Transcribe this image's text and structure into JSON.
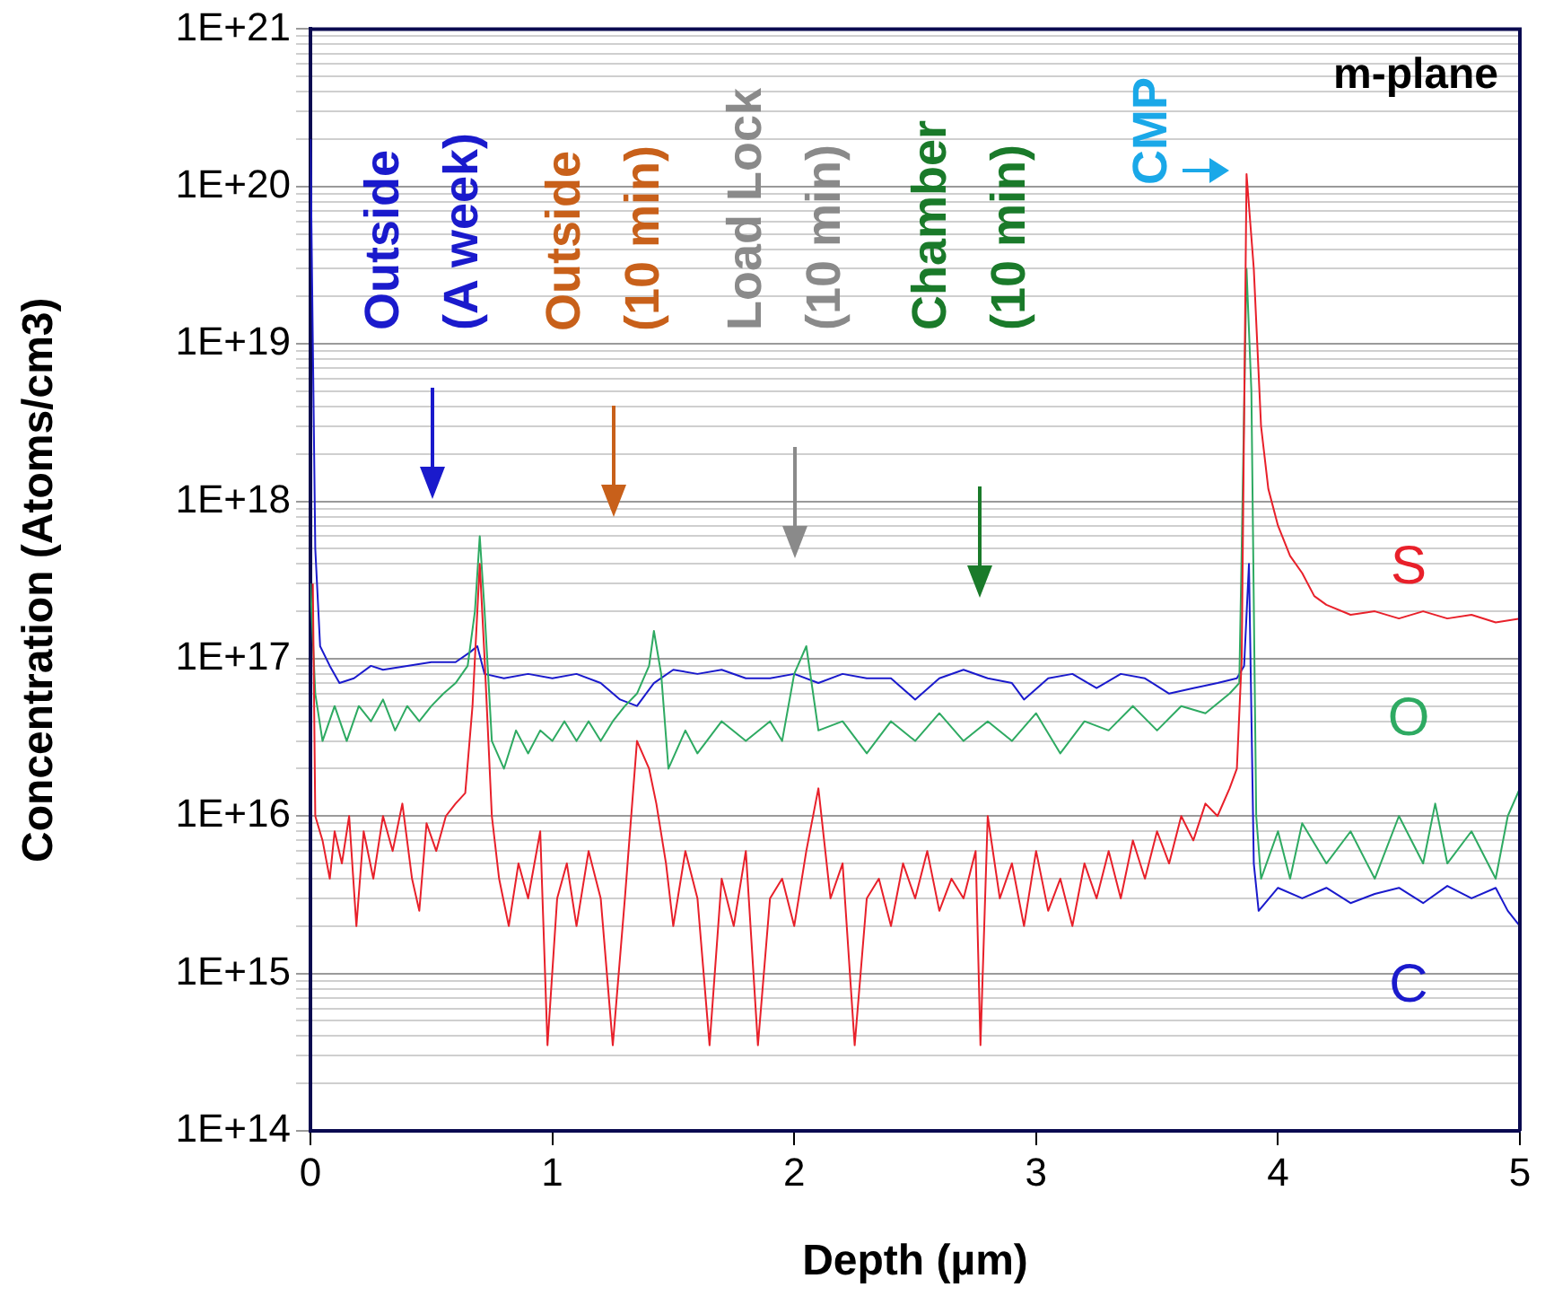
{
  "chart_data": {
    "type": "line",
    "xlabel": "Depth (µm)",
    "ylabel": "Concentration (Atoms/cm3)",
    "log": "y",
    "grid": "y",
    "legend": false,
    "xlim": [
      0,
      5
    ],
    "xticks": [
      0,
      1,
      2,
      3,
      4,
      5
    ],
    "ylim": [
      100000000000000.0,
      1e+21
    ],
    "yticks": [
      {
        "value": 100000000000000.0,
        "label": "1E+14"
      },
      {
        "value": 200000000000000.0,
        "label": null
      },
      {
        "value": 300000000000000.0,
        "label": null
      },
      {
        "value": 400000000000000.0,
        "label": null
      },
      {
        "value": 500000000000000.0,
        "label": null
      },
      {
        "value": 600000000000000.0,
        "label": null
      },
      {
        "value": 700000000000000.0,
        "label": null
      },
      {
        "value": 800000000000000.0,
        "label": null
      },
      {
        "value": 900000000000000.0,
        "label": null
      },
      {
        "value": 1000000000000000.0,
        "label": "1E+15"
      },
      {
        "value": 2000000000000000.0,
        "label": null
      },
      {
        "value": 3000000000000000.0,
        "label": null
      },
      {
        "value": 4000000000000000.0,
        "label": null
      },
      {
        "value": 5000000000000000.0,
        "label": null
      },
      {
        "value": 6000000000000000.0,
        "label": null
      },
      {
        "value": 7000000000000000.0,
        "label": null
      },
      {
        "value": 8000000000000000.0,
        "label": null
      },
      {
        "value": 9000000000000000.0,
        "label": null
      },
      {
        "value": 1e+16,
        "label": "1E+16"
      },
      {
        "value": 2e+16,
        "label": null
      },
      {
        "value": 3e+16,
        "label": null
      },
      {
        "value": 4e+16,
        "label": null
      },
      {
        "value": 5e+16,
        "label": null
      },
      {
        "value": 6e+16,
        "label": null
      },
      {
        "value": 7e+16,
        "label": null
      },
      {
        "value": 8e+16,
        "label": null
      },
      {
        "value": 9e+16,
        "label": null
      },
      {
        "value": 1e+17,
        "label": "1E+17"
      },
      {
        "value": 2e+17,
        "label": null
      },
      {
        "value": 3e+17,
        "label": null
      },
      {
        "value": 4e+17,
        "label": null
      },
      {
        "value": 5e+17,
        "label": null
      },
      {
        "value": 6e+17,
        "label": null
      },
      {
        "value": 7e+17,
        "label": null
      },
      {
        "value": 8e+17,
        "label": null
      },
      {
        "value": 9e+17,
        "label": null
      },
      {
        "value": 1e+18,
        "label": "1E+18"
      },
      {
        "value": 2e+18,
        "label": null
      },
      {
        "value": 3e+18,
        "label": null
      },
      {
        "value": 4e+18,
        "label": null
      },
      {
        "value": 5e+18,
        "label": null
      },
      {
        "value": 6e+18,
        "label": null
      },
      {
        "value": 7e+18,
        "label": null
      },
      {
        "value": 8e+18,
        "label": null
      },
      {
        "value": 9e+18,
        "label": null
      },
      {
        "value": 1e+19,
        "label": "1E+19"
      },
      {
        "value": 2e+19,
        "label": null
      },
      {
        "value": 3e+19,
        "label": null
      },
      {
        "value": 4e+19,
        "label": null
      },
      {
        "value": 5e+19,
        "label": null
      },
      {
        "value": 6e+19,
        "label": null
      },
      {
        "value": 7e+19,
        "label": null
      },
      {
        "value": 8e+19,
        "label": null
      },
      {
        "value": 9e+19,
        "label": null
      },
      {
        "value": 1e+20,
        "label": "1E+20"
      },
      {
        "value": 2e+20,
        "label": null
      },
      {
        "value": 3e+20,
        "label": null
      },
      {
        "value": 4e+20,
        "label": null
      },
      {
        "value": 5e+20,
        "label": null
      },
      {
        "value": 6e+20,
        "label": null
      },
      {
        "value": 7e+20,
        "label": null
      },
      {
        "value": 8e+20,
        "label": null
      },
      {
        "value": 9e+20,
        "label": null
      },
      {
        "value": 1e+21,
        "label": "1E+21"
      }
    ],
    "annotations": [
      "m-plane",
      "Outside\n(A week)",
      "Outside\n(10 min)",
      "Load Lock\n(10 min)",
      "Chamber\n(10 min)",
      "CMP"
    ],
    "series": [
      {
        "name": "S",
        "color": "#e8202a",
        "x": [
          0.01,
          0.02,
          0.05,
          0.08,
          0.1,
          0.13,
          0.16,
          0.19,
          0.22,
          0.26,
          0.3,
          0.34,
          0.38,
          0.42,
          0.45,
          0.48,
          0.52,
          0.56,
          0.6,
          0.64,
          0.67,
          0.7,
          0.72,
          0.75,
          0.78,
          0.82,
          0.86,
          0.9,
          0.95,
          0.98,
          1.02,
          1.06,
          1.1,
          1.15,
          1.2,
          1.25,
          1.3,
          1.35,
          1.4,
          1.43,
          1.47,
          1.5,
          1.55,
          1.6,
          1.65,
          1.7,
          1.75,
          1.8,
          1.85,
          1.9,
          1.95,
          2.0,
          2.05,
          2.1,
          2.15,
          2.2,
          2.25,
          2.3,
          2.35,
          2.4,
          2.45,
          2.5,
          2.55,
          2.6,
          2.65,
          2.7,
          2.75,
          2.77,
          2.8,
          2.85,
          2.9,
          2.95,
          3.0,
          3.05,
          3.1,
          3.15,
          3.2,
          3.25,
          3.3,
          3.35,
          3.4,
          3.45,
          3.5,
          3.55,
          3.6,
          3.65,
          3.7,
          3.75,
          3.8,
          3.83,
          3.85,
          3.87,
          3.9,
          3.93,
          3.96,
          4.0,
          4.05,
          4.1,
          4.15,
          4.2,
          4.3,
          4.4,
          4.5,
          4.6,
          4.7,
          4.8,
          4.9,
          5.0
        ],
        "values": [
          3e+17,
          1e+16,
          7000000000000000.0,
          4000000000000000.0,
          8000000000000000.0,
          5000000000000000.0,
          1e+16,
          2000000000000000.0,
          8000000000000000.0,
          4000000000000000.0,
          1e+16,
          6000000000000000.0,
          1.2e+16,
          4000000000000000.0,
          2500000000000000.0,
          9000000000000000.0,
          6000000000000000.0,
          1e+16,
          1.2e+16,
          1.4e+16,
          5e+16,
          4e+17,
          1e+17,
          1e+16,
          4000000000000000.0,
          2000000000000000.0,
          5000000000000000.0,
          3000000000000000.0,
          8000000000000000.0,
          350000000000000.0,
          3000000000000000.0,
          5000000000000000.0,
          2000000000000000.0,
          6000000000000000.0,
          3000000000000000.0,
          350000000000000.0,
          3000000000000000.0,
          3e+16,
          2e+16,
          1.2e+16,
          5000000000000000.0,
          2000000000000000.0,
          6000000000000000.0,
          3000000000000000.0,
          350000000000000.0,
          4000000000000000.0,
          2000000000000000.0,
          6000000000000000.0,
          350000000000000.0,
          3000000000000000.0,
          4000000000000000.0,
          2000000000000000.0,
          6000000000000000.0,
          1.5e+16,
          3000000000000000.0,
          5000000000000000.0,
          350000000000000.0,
          3000000000000000.0,
          4000000000000000.0,
          2000000000000000.0,
          5000000000000000.0,
          3000000000000000.0,
          6000000000000000.0,
          2500000000000000.0,
          4000000000000000.0,
          3000000000000000.0,
          6000000000000000.0,
          350000000000000.0,
          1e+16,
          3000000000000000.0,
          5000000000000000.0,
          2000000000000000.0,
          6000000000000000.0,
          2500000000000000.0,
          4000000000000000.0,
          2000000000000000.0,
          5000000000000000.0,
          3000000000000000.0,
          6000000000000000.0,
          3000000000000000.0,
          7000000000000000.0,
          4000000000000000.0,
          8000000000000000.0,
          5000000000000000.0,
          1e+16,
          7000000000000000.0,
          1.2e+16,
          1e+16,
          1.5e+16,
          2e+16,
          1e+17,
          1.2e+20,
          3e+19,
          3e+18,
          1.2e+18,
          7e+17,
          4.5e+17,
          3.5e+17,
          2.5e+17,
          2.2e+17,
          1.9e+17,
          2e+17,
          1.8e+17,
          2e+17,
          1.8e+17,
          1.9e+17,
          1.7e+17,
          1.8e+17
        ]
      },
      {
        "name": "O",
        "color": "#2eaa62",
        "x": [
          0,
          0.02,
          0.05,
          0.1,
          0.15,
          0.2,
          0.25,
          0.3,
          0.35,
          0.4,
          0.45,
          0.5,
          0.55,
          0.6,
          0.65,
          0.68,
          0.7,
          0.72,
          0.75,
          0.8,
          0.85,
          0.9,
          0.95,
          1.0,
          1.05,
          1.1,
          1.15,
          1.2,
          1.25,
          1.3,
          1.35,
          1.4,
          1.42,
          1.45,
          1.48,
          1.55,
          1.6,
          1.7,
          1.8,
          1.9,
          1.95,
          2.0,
          2.05,
          2.1,
          2.2,
          2.3,
          2.4,
          2.5,
          2.6,
          2.7,
          2.8,
          2.9,
          3.0,
          3.1,
          3.2,
          3.3,
          3.4,
          3.5,
          3.6,
          3.7,
          3.8,
          3.84,
          3.85,
          3.87,
          3.89,
          3.91,
          3.93,
          4.0,
          4.05,
          4.1,
          4.2,
          4.3,
          4.4,
          4.5,
          4.6,
          4.65,
          4.7,
          4.8,
          4.9,
          4.95,
          5.0
        ],
        "values": [
          3e+17,
          6e+16,
          3e+16,
          5e+16,
          3e+16,
          5e+16,
          4e+16,
          5.5e+16,
          3.5e+16,
          5e+16,
          4e+16,
          5e+16,
          6e+16,
          7e+16,
          9e+16,
          2e+17,
          6e+17,
          2e+17,
          3e+16,
          2e+16,
          3.5e+16,
          2.5e+16,
          3.5e+16,
          3e+16,
          4e+16,
          3e+16,
          4e+16,
          3e+16,
          4e+16,
          5e+16,
          6e+16,
          9e+16,
          1.5e+17,
          8e+16,
          2e+16,
          3.5e+16,
          2.5e+16,
          4e+16,
          3e+16,
          4e+16,
          3e+16,
          8e+16,
          1.2e+17,
          3.5e+16,
          4e+16,
          2.5e+16,
          4e+16,
          3e+16,
          4.5e+16,
          3e+16,
          4e+16,
          3e+16,
          4.5e+16,
          2.5e+16,
          4e+16,
          3.5e+16,
          5e+16,
          3.5e+16,
          5e+16,
          4.5e+16,
          6e+16,
          7e+16,
          5e+17,
          3e+19,
          5e+18,
          1e+16,
          4000000000000000.0,
          8000000000000000.0,
          4000000000000000.0,
          9000000000000000.0,
          5000000000000000.0,
          8000000000000000.0,
          4000000000000000.0,
          1e+16,
          5000000000000000.0,
          1.2e+16,
          5000000000000000.0,
          8000000000000000.0,
          4000000000000000.0,
          1e+16,
          1.5e+16
        ]
      },
      {
        "name": "C",
        "color": "#1a1acc",
        "x": [
          0,
          0.01,
          0.02,
          0.04,
          0.08,
          0.12,
          0.18,
          0.25,
          0.3,
          0.4,
          0.5,
          0.6,
          0.66,
          0.69,
          0.72,
          0.8,
          0.9,
          1.0,
          1.1,
          1.2,
          1.28,
          1.35,
          1.42,
          1.5,
          1.6,
          1.7,
          1.8,
          1.9,
          2.0,
          2.1,
          2.2,
          2.3,
          2.4,
          2.5,
          2.6,
          2.7,
          2.8,
          2.9,
          2.95,
          3.05,
          3.15,
          3.25,
          3.35,
          3.45,
          3.55,
          3.65,
          3.75,
          3.83,
          3.86,
          3.88,
          3.9,
          3.92,
          4.0,
          4.1,
          4.2,
          4.3,
          4.4,
          4.5,
          4.6,
          4.7,
          4.8,
          4.9,
          4.95,
          5.0
        ],
        "values": [
          2e+20,
          1e+19,
          5e+17,
          1.2e+17,
          9e+16,
          7e+16,
          7.5e+16,
          9e+16,
          8.5e+16,
          9e+16,
          9.5e+16,
          9.5e+16,
          1.1e+17,
          1.2e+17,
          8e+16,
          7.5e+16,
          8e+16,
          7.5e+16,
          8e+16,
          7e+16,
          5.5e+16,
          5e+16,
          7e+16,
          8.5e+16,
          8e+16,
          8.5e+16,
          7.5e+16,
          7.5e+16,
          8e+16,
          7e+16,
          8e+16,
          7.5e+16,
          7.5e+16,
          5.5e+16,
          7.5e+16,
          8.5e+16,
          7.5e+16,
          7e+16,
          5.5e+16,
          7.5e+16,
          8e+16,
          6.5e+16,
          8e+16,
          7.5e+16,
          6e+16,
          6.5e+16,
          7e+16,
          7.5e+16,
          9e+16,
          4e+17,
          5000000000000000.0,
          2500000000000000.0,
          3500000000000000.0,
          3000000000000000.0,
          3500000000000000.0,
          2800000000000000.0,
          3200000000000000.0,
          3500000000000000.0,
          2800000000000000.0,
          3600000000000000.0,
          3000000000000000.0,
          3500000000000000.0,
          2500000000000000.0,
          2000000000000000.0
        ]
      }
    ]
  }
}
